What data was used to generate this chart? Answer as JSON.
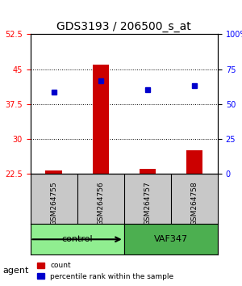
{
  "title": "GDS3193 / 206500_s_at",
  "samples": [
    "GSM264755",
    "GSM264756",
    "GSM264757",
    "GSM264758"
  ],
  "groups": [
    {
      "name": "control",
      "color": "#90EE90",
      "samples": [
        0,
        1
      ]
    },
    {
      "name": "VAF347",
      "color": "#4CAF50",
      "samples": [
        2,
        3
      ]
    }
  ],
  "bar_values": [
    23.2,
    46.0,
    23.5,
    27.5
  ],
  "dot_values": [
    40.0,
    42.5,
    40.5,
    41.5
  ],
  "bar_bottom": 22.5,
  "ylim": [
    22.5,
    52.5
  ],
  "yticks_left": [
    22.5,
    30,
    37.5,
    45,
    52.5
  ],
  "yticks_right": [
    0,
    25,
    50,
    75,
    100
  ],
  "right_axis_label_pct": [
    "0",
    "25",
    "50",
    "75",
    "100%"
  ],
  "bar_color": "#CC0000",
  "dot_color": "#0000CC",
  "grid_color": "#000000",
  "background_color": "#FFFFFF",
  "xlabel_area_color": "#C8C8C8",
  "agent_label": "agent",
  "legend_count": "count",
  "legend_pct": "percentile rank within the sample"
}
